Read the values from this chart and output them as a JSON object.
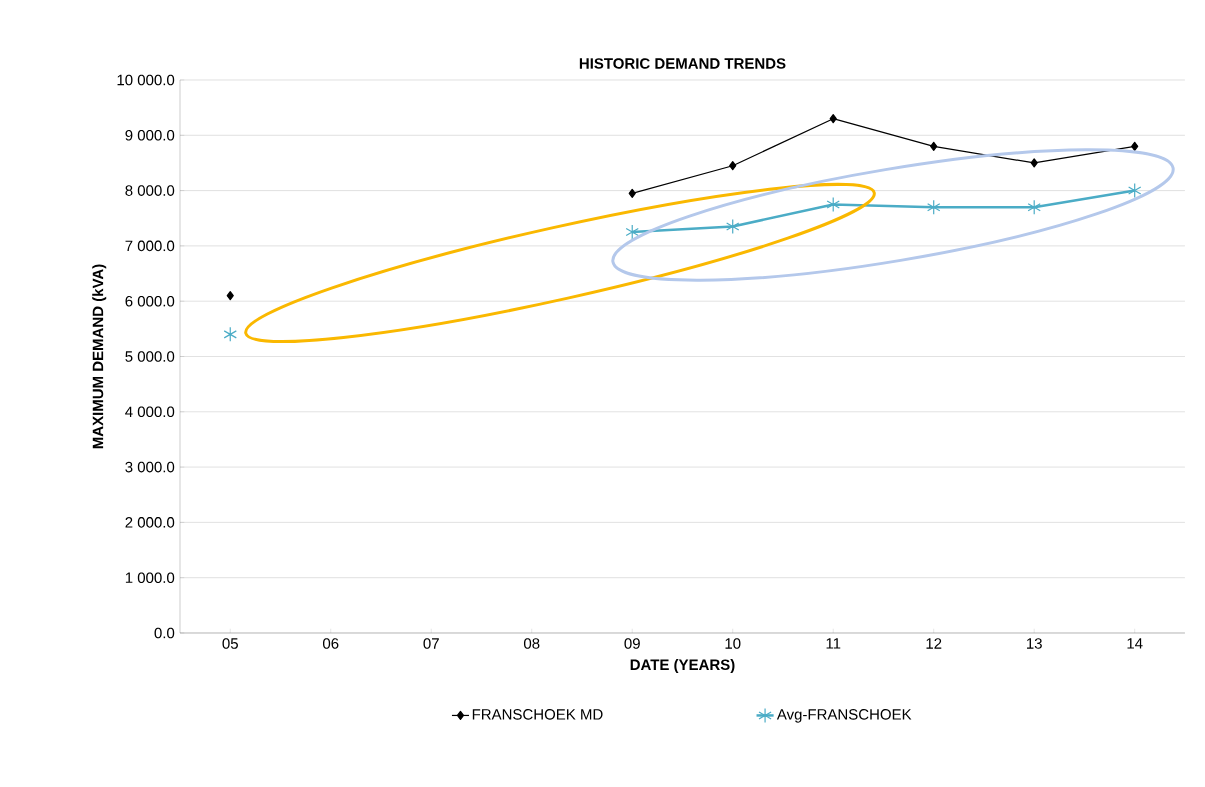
{
  "chart_data": {
    "type": "line",
    "title": "HISTORIC DEMAND TRENDS",
    "xlabel": "DATE (YEARS)",
    "ylabel": "MAXIMUM DEMAND (kVA)",
    "categories": [
      "05",
      "06",
      "07",
      "08",
      "09",
      "10",
      "11",
      "12",
      "13",
      "14"
    ],
    "series": [
      {
        "name": "FRANSCHOEK MD",
        "color": "#000000",
        "marker": "diamond",
        "values": [
          6100,
          null,
          null,
          null,
          7950,
          8450,
          9300,
          8800,
          8500,
          8800
        ]
      },
      {
        "name": "Avg-FRANSCHOEK",
        "color": "#4bacc6",
        "marker": "cross",
        "values": [
          5400,
          null,
          null,
          null,
          7250,
          7350,
          7750,
          7700,
          7700,
          8000
        ]
      }
    ],
    "ylim": [
      0,
      10000
    ],
    "yticks": [
      {
        "value": 0,
        "label": "0.0"
      },
      {
        "value": 1000,
        "label": "1 000.0"
      },
      {
        "value": 2000,
        "label": "2 000.0"
      },
      {
        "value": 3000,
        "label": "3 000.0"
      },
      {
        "value": 4000,
        "label": "4 000.0"
      },
      {
        "value": 5000,
        "label": "5 000.0"
      },
      {
        "value": 6000,
        "label": "6 000.0"
      },
      {
        "value": 7000,
        "label": "7 000.0"
      },
      {
        "value": 8000,
        "label": "8 000.0"
      },
      {
        "value": 9000,
        "label": "9 000.0"
      },
      {
        "value": 10000,
        "label": "10 000.0"
      }
    ],
    "grid": "y",
    "legend": "bottom"
  }
}
